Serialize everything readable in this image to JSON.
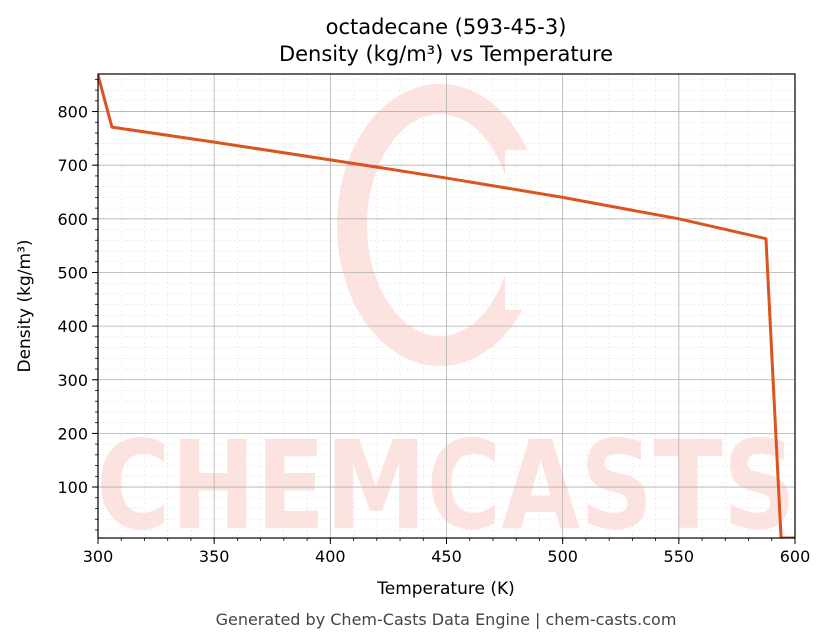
{
  "chart_data": {
    "type": "line",
    "title": "octadecane (593-45-3)",
    "subtitle": "Density (kg/m³) vs Temperature",
    "xlabel": "Temperature (K)",
    "ylabel": "Density (kg/m³)",
    "xlim": [
      300,
      600
    ],
    "ylim": [
      5,
      870
    ],
    "x_ticks": [
      300,
      350,
      400,
      450,
      500,
      550,
      600
    ],
    "y_ticks": [
      100,
      200,
      300,
      400,
      500,
      600,
      700,
      800
    ],
    "grid": true,
    "minor_grid": true,
    "series": [
      {
        "color": "#d9541e",
        "x": [
          300,
          306,
          350,
          400,
          450,
          500,
          550,
          587.5,
          594,
          600
        ],
        "y": [
          868,
          771,
          743,
          710,
          676,
          640,
          600,
          563,
          5,
          5
        ]
      }
    ]
  },
  "watermark": {
    "text": "CHEMCASTS",
    "color": "#fde3df"
  },
  "footer": "Generated by Chem-Casts Data Engine | chem-casts.com"
}
